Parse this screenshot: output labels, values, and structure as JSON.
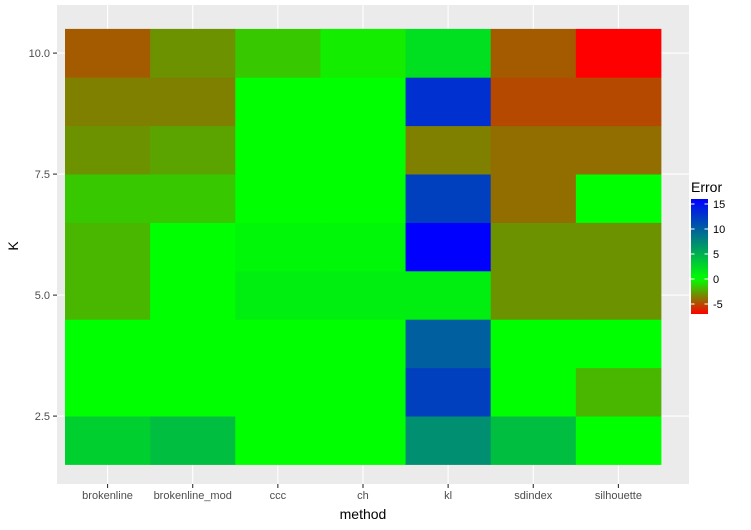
{
  "chart_data": {
    "type": "heatmap",
    "xlabel": "method",
    "ylabel": "K",
    "x_categories": [
      "brokenline",
      "brokenline_mod",
      "ccc",
      "ch",
      "kl",
      "sdindex",
      "silhouette"
    ],
    "y_values": [
      2,
      3,
      4,
      5,
      6,
      7,
      8,
      9,
      10
    ],
    "y_ticks": [
      2.5,
      5.0,
      7.5,
      10.0
    ],
    "y_tick_labels": [
      "2.5",
      "5.0",
      "7.5",
      "10.0"
    ],
    "ylim": [
      1.5,
      10.5
    ],
    "z_values": [
      [
        3,
        4,
        0,
        0,
        7,
        4,
        0
      ],
      [
        0,
        0,
        0,
        0,
        12,
        0,
        -2
      ],
      [
        0,
        0,
        0,
        0,
        10,
        0,
        0
      ],
      [
        -2,
        0,
        1,
        1,
        1,
        -3,
        -3
      ],
      [
        -2,
        0,
        0.5,
        0.5,
        16,
        -3,
        -3
      ],
      [
        -1.5,
        -1.5,
        0,
        0,
        12,
        -4,
        0
      ],
      [
        -3,
        -2.5,
        0,
        0,
        -3.5,
        -4,
        -4
      ],
      [
        -3.5,
        -3.5,
        0,
        0,
        13,
        -5,
        -5
      ],
      [
        -4.5,
        -3,
        -1.5,
        -0.5,
        2,
        -4.5,
        -7
      ]
    ],
    "legend": {
      "title": "Error",
      "ticks": [
        15,
        10,
        5,
        0,
        -5
      ],
      "tick_labels": [
        "15",
        "10",
        "5",
        "0",
        "-5"
      ],
      "position": "right"
    },
    "color_scale": {
      "low": "#ff0000",
      "mid": "#00ff00",
      "high": "#0000ff",
      "midpoint": 0,
      "limits": [
        -7,
        16
      ]
    },
    "panel_background": "#ebebeb",
    "grid_color": "#ffffff",
    "grid": true
  }
}
